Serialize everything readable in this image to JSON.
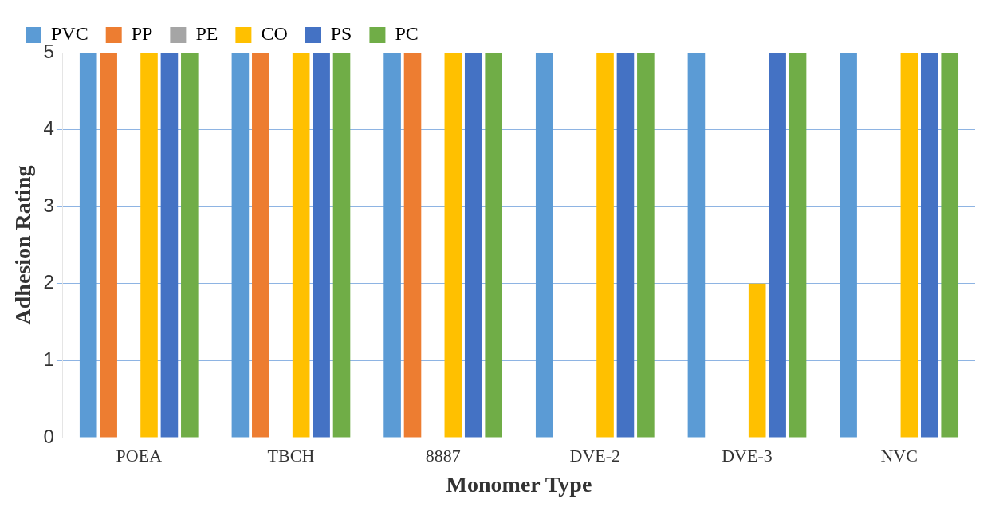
{
  "chart_data": {
    "type": "bar",
    "xlabel": "Monomer Type",
    "ylabel": "Adhesion Rating",
    "categories": [
      "POEA",
      "TBCH",
      "8887",
      "DVE-2",
      "DVE-3",
      "NVC"
    ],
    "series": [
      {
        "name": "PVC",
        "color": "#5b9bd5",
        "values": [
          5,
          5,
          5,
          5,
          5,
          5
        ]
      },
      {
        "name": "PP",
        "color": "#ed7d31",
        "values": [
          5,
          5,
          5,
          0,
          0,
          0
        ]
      },
      {
        "name": "PE",
        "color": "#a5a5a5",
        "values": [
          0,
          0,
          0,
          0,
          0,
          0
        ]
      },
      {
        "name": "CO",
        "color": "#ffc000",
        "values": [
          5,
          5,
          5,
          5,
          2,
          5
        ]
      },
      {
        "name": "PS",
        "color": "#4472c4",
        "values": [
          5,
          5,
          5,
          5,
          5,
          5
        ]
      },
      {
        "name": "PC",
        "color": "#70ad47",
        "values": [
          5,
          5,
          5,
          5,
          5,
          5
        ]
      }
    ],
    "ylim": [
      0,
      5
    ],
    "yticks": [
      0,
      1,
      2,
      3,
      4,
      5
    ],
    "grid": "y",
    "legend": "top left"
  }
}
